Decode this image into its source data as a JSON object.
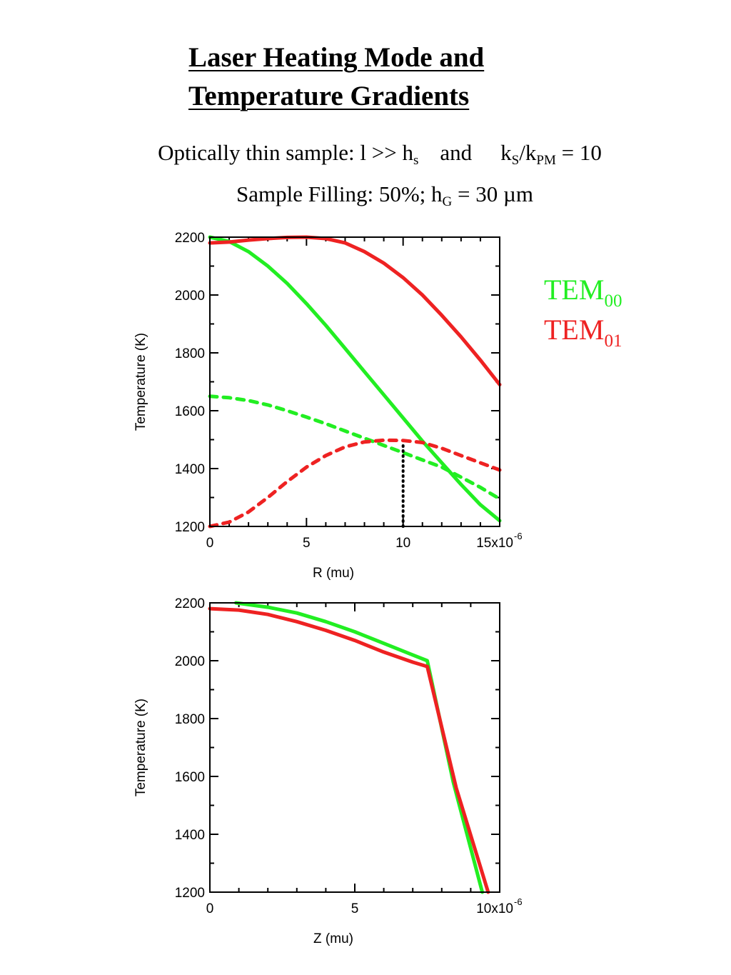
{
  "page": {
    "title_line1": "Laser Heating Mode and",
    "title_line2": "Temperature Gradients",
    "subtitle1": {
      "prefix": "Optically thin sample: l >> h",
      "sub_s": "s",
      "mid": "and",
      "k": "k",
      "sub_S": "S",
      "slash_k": "/k",
      "sub_PM": "PM",
      "suffix": " = 10"
    },
    "subtitle2": {
      "prefix": "Sample Filling: 50%; h",
      "sub_G": "G",
      "suffix": " = 30 µm"
    }
  },
  "legend": [
    {
      "base": "TEM",
      "sub": "00",
      "color": "#22ee22"
    },
    {
      "base": "TEM",
      "sub": "01",
      "color": "#ee2222"
    }
  ],
  "chart_data": [
    {
      "type": "line",
      "xlabel": "R (mu)",
      "ylabel": "Temperature (K)",
      "xlim": [
        0,
        15
      ],
      "ylim": [
        1200,
        2200
      ],
      "x_ticks": [
        {
          "value": 0,
          "label": "0"
        },
        {
          "value": 5,
          "label": "5"
        },
        {
          "value": 10,
          "label": "10"
        },
        {
          "value": 15,
          "label": "15x10"
        }
      ],
      "x_exponent": "-6",
      "y_ticks": [
        {
          "value": 1200,
          "label": "1200"
        },
        {
          "value": 1400,
          "label": "1400"
        },
        {
          "value": 1600,
          "label": "1600"
        },
        {
          "value": 1800,
          "label": "1800"
        },
        {
          "value": 2000,
          "label": "2000"
        },
        {
          "value": 2200,
          "label": "2200"
        }
      ],
      "series": [
        {
          "mode": "TEM00",
          "style": "solid",
          "color": "#22ee22",
          "x": [
            0,
            1,
            2,
            3,
            4,
            5,
            6,
            7,
            8,
            9,
            10,
            11,
            12,
            13,
            14,
            15
          ],
          "y": [
            2200,
            2185,
            2150,
            2100,
            2040,
            1970,
            1895,
            1815,
            1735,
            1655,
            1575,
            1495,
            1420,
            1345,
            1275,
            1220
          ]
        },
        {
          "mode": "TEM01",
          "style": "solid",
          "color": "#ee2222",
          "x": [
            0,
            1,
            2,
            3,
            4,
            5,
            6,
            7,
            8,
            9,
            10,
            11,
            12,
            13,
            14,
            15
          ],
          "y": [
            2180,
            2183,
            2190,
            2195,
            2199,
            2200,
            2195,
            2180,
            2150,
            2110,
            2060,
            2000,
            1930,
            1855,
            1775,
            1690
          ]
        },
        {
          "mode": "TEM00",
          "style": "dashed",
          "color": "#22ee22",
          "x": [
            0,
            1,
            2,
            3,
            4,
            5,
            6,
            7,
            8,
            9,
            10,
            11,
            12,
            13,
            14,
            15
          ],
          "y": [
            1650,
            1645,
            1635,
            1620,
            1600,
            1578,
            1555,
            1530,
            1505,
            1480,
            1455,
            1430,
            1405,
            1370,
            1335,
            1295
          ]
        },
        {
          "mode": "TEM01",
          "style": "dashed",
          "color": "#ee2222",
          "x": [
            0,
            1,
            2,
            3,
            4,
            5,
            6,
            7,
            8,
            9,
            10,
            11,
            12,
            13,
            14,
            15
          ],
          "y": [
            1200,
            1215,
            1250,
            1300,
            1355,
            1405,
            1445,
            1475,
            1492,
            1498,
            1497,
            1490,
            1470,
            1445,
            1420,
            1395
          ]
        }
      ],
      "marker_line": {
        "x": 10,
        "y_from": 1200,
        "y_to": 1480,
        "style": "dotted",
        "color": "#000000"
      }
    },
    {
      "type": "line",
      "xlabel": "Z (mu)",
      "ylabel": "Temperature (K)",
      "xlim": [
        0,
        10
      ],
      "ylim": [
        1200,
        2200
      ],
      "x_ticks": [
        {
          "value": 0,
          "label": "0"
        },
        {
          "value": 5,
          "label": "5"
        },
        {
          "value": 10,
          "label": "10x10"
        }
      ],
      "x_exponent": "-6",
      "y_ticks": [
        {
          "value": 1200,
          "label": "1200"
        },
        {
          "value": 1400,
          "label": "1400"
        },
        {
          "value": 1600,
          "label": "1600"
        },
        {
          "value": 1800,
          "label": "1800"
        },
        {
          "value": 2000,
          "label": "2000"
        },
        {
          "value": 2200,
          "label": "2200"
        }
      ],
      "series": [
        {
          "mode": "TEM00",
          "style": "solid",
          "color": "#22ee22",
          "x": [
            0.9,
            2,
            3,
            4,
            5,
            6,
            7,
            7.5,
            8.4,
            9.4
          ],
          "y": [
            2200,
            2185,
            2165,
            2135,
            2100,
            2060,
            2020,
            2000,
            1580,
            1200
          ]
        },
        {
          "mode": "TEM01",
          "style": "solid",
          "color": "#ee2222",
          "x": [
            0,
            1,
            2,
            3,
            4,
            5,
            6,
            7,
            7.5,
            8.5,
            9.6
          ],
          "y": [
            2180,
            2175,
            2160,
            2135,
            2105,
            2070,
            2030,
            1995,
            1980,
            1560,
            1200
          ]
        }
      ]
    }
  ]
}
